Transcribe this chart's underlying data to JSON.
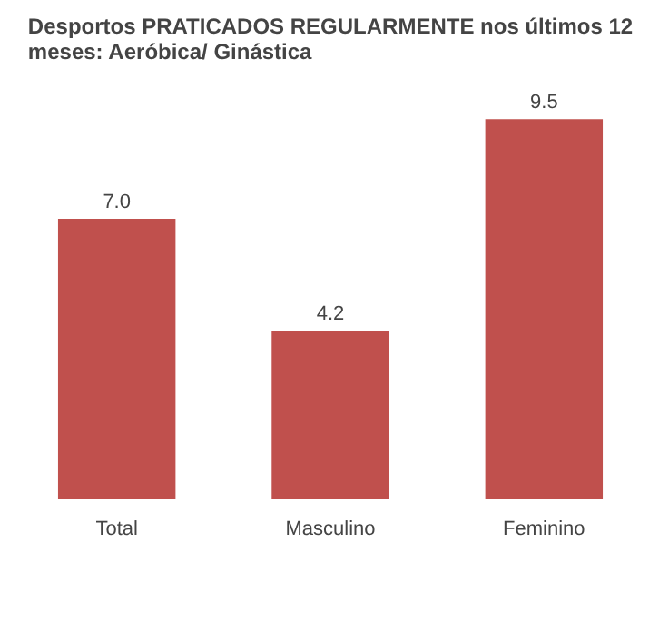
{
  "chart_data": {
    "type": "bar",
    "title": "Desportos PRATICADOS REGULARMENTE nos últimos 12\nmeses: Aeróbica/ Ginástica",
    "categories": [
      "Total",
      "Masculino",
      "Feminino"
    ],
    "values": [
      7.0,
      4.2,
      9.5
    ],
    "value_labels": [
      "7.0",
      "4.2",
      "9.5"
    ],
    "color": "#c0504d",
    "grid": false
  }
}
